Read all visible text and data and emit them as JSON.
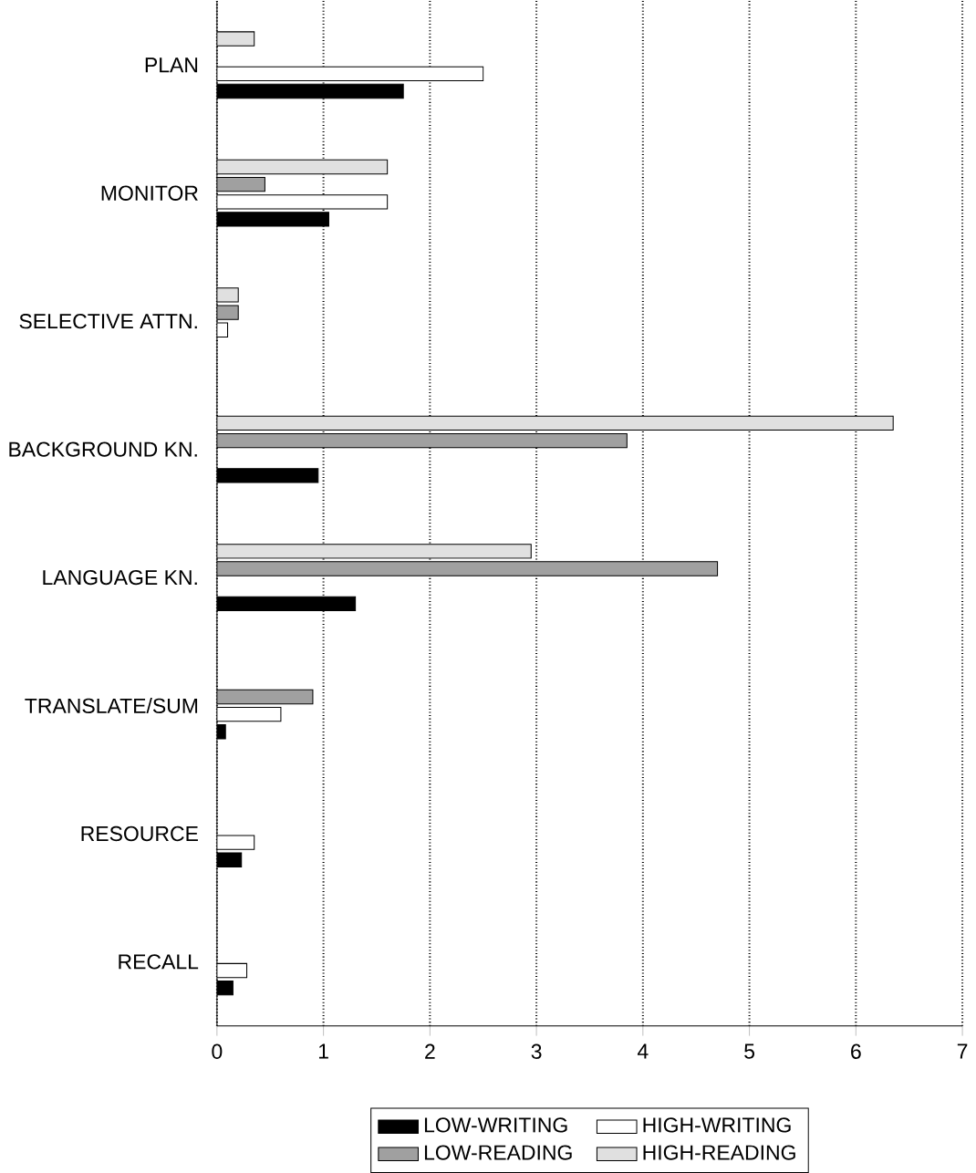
{
  "chart_data": {
    "type": "bar",
    "orientation": "horizontal",
    "categories": [
      "PLAN",
      "MONITOR",
      "SELECTIVE ATTN.",
      "BACKGROUND KN.",
      "LANGUAGE KN.",
      "TRANSLATE/SUM",
      "RESOURCE",
      "RECALL"
    ],
    "series": [
      {
        "name": "LOW-WRITING",
        "color": "#000000",
        "values": [
          1.75,
          1.05,
          null,
          0.95,
          1.3,
          0.08,
          0.23,
          0.15
        ]
      },
      {
        "name": "HIGH-WRITING",
        "color": "#ffffff",
        "values": [
          2.5,
          1.6,
          0.1,
          null,
          null,
          0.6,
          0.35,
          0.28
        ]
      },
      {
        "name": "LOW-READING",
        "color": "#a0a0a0",
        "values": [
          null,
          0.45,
          0.2,
          3.85,
          4.7,
          0.9,
          null,
          null
        ]
      },
      {
        "name": "HIGH-READING",
        "color": "#e0e0e0",
        "values": [
          0.35,
          1.6,
          0.2,
          6.35,
          2.95,
          null,
          null,
          null
        ]
      }
    ],
    "xlim": [
      0,
      7
    ],
    "xticks": [
      0,
      1,
      2,
      3,
      4,
      5,
      6,
      7
    ],
    "grid": "x",
    "legend": "bottom"
  }
}
